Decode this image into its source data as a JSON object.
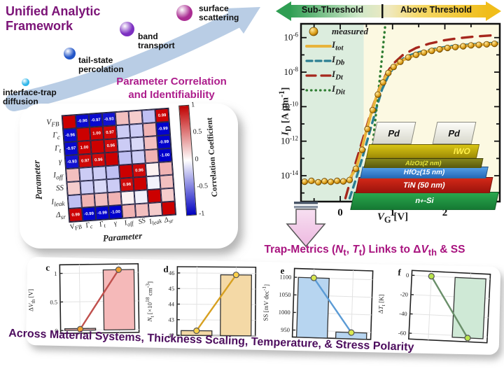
{
  "framework": {
    "title": "Unified Analytic Framework",
    "steps": [
      {
        "label": "interface-trap diffusion",
        "color": "#30b6e9"
      },
      {
        "label": "tail-state percolation",
        "color": "#2356c8"
      },
      {
        "label": "band transport",
        "color": "#7c2fc1"
      },
      {
        "label": "surface scattering",
        "color": "#aa2d92"
      }
    ]
  },
  "correlation_title": {
    "line1": "Parameter Correlation",
    "line2": "and Identifiability"
  },
  "trap_title": "Trap-Metrics (*N*_{t}, *T*_{t}) Links to Δ*V*_{th}  & SS",
  "bottom_text": "Across Material Systems, Thickness Scaling, Temperature, & Stress Polarity",
  "device": {
    "layers": {
      "pd1": "Pd",
      "pd2": "Pd",
      "iwo": "IWO",
      "alo": "Al_{2}O_{3} (2 nm)",
      "hfo": "HfO_{2} (15 nm)",
      "tin": "TiN (50 nm)",
      "si": "n^{+}-Si"
    }
  },
  "chart_data": [
    {
      "id": "correlation_heatmap",
      "type": "heatmap",
      "title": "Parameter Correlation and Identifiability",
      "xlabel": "Parameter",
      "ylabel": "Parameter",
      "params": [
        "*V*_{FB}",
        "*Γ*_{c}",
        "*Γ*_{t}",
        "*γ*",
        "*I*_{off}",
        "SS",
        "*I*_{leak}",
        "Δ_{sr}"
      ],
      "colorbar": {
        "label": "Correlation Coefficient",
        "ticks": [
          "1",
          "0.5",
          "0",
          "-0.5",
          "-1"
        ],
        "range": [
          -1,
          1
        ]
      },
      "matrix": [
        [
          1.0,
          -0.96,
          -0.97,
          -0.93,
          0.25,
          0.2,
          -0.25,
          0.99
        ],
        [
          -0.96,
          1.0,
          1.0,
          0.97,
          -0.2,
          -0.2,
          0.3,
          -0.99
        ],
        [
          -0.97,
          1.0,
          1.0,
          0.96,
          -0.2,
          -0.15,
          0.25,
          -0.99
        ],
        [
          -0.93,
          0.97,
          0.96,
          1.0,
          -0.25,
          -0.2,
          0.3,
          -1.0
        ],
        [
          0.25,
          -0.2,
          -0.2,
          -0.25,
          1.0,
          0.96,
          0.05,
          0.3
        ],
        [
          0.2,
          -0.2,
          -0.15,
          -0.2,
          0.96,
          1.0,
          -0.05,
          0.25
        ],
        [
          -0.25,
          0.3,
          0.25,
          0.3,
          0.05,
          -0.05,
          1.0,
          0.2
        ],
        [
          0.99,
          -0.99,
          -0.99,
          -1.0,
          0.3,
          0.25,
          0.2,
          1.0
        ]
      ]
    },
    {
      "id": "transfer_characteristics",
      "type": "line",
      "log_y": true,
      "banner": {
        "left_label": "Sub-Threshold",
        "right_label": "Above Threshold"
      },
      "xlabel": "*V*_{G} [V]",
      "ylabel": "*I*_{D} [A μm^{-1}]",
      "xlim": [
        -0.75,
        3.05
      ],
      "ylog10_lim": [
        -15.5,
        -5.2
      ],
      "xticks": [
        0,
        1,
        2
      ],
      "xticks_minor": [
        -0.5,
        0.5,
        1.5,
        2.5
      ],
      "yticks_log10": [
        -6,
        -8,
        -10,
        -12,
        -14
      ],
      "yticks_minor_log10": [
        -7,
        -9,
        -11,
        -13,
        -15
      ],
      "region_boundary_v": 0.45,
      "region_colors": {
        "subthreshold": "#dcedde",
        "above_threshold": "#fcf9e2"
      },
      "legend": [
        {
          "label": "measured",
          "marker": "sphere",
          "color": "#c8860a"
        },
        {
          "label": "*I*_{tot}",
          "marker": "solid",
          "color": "#e8b43c"
        },
        {
          "label": "*I*_{Db}",
          "marker": "dash",
          "color": "#2b7e92"
        },
        {
          "label": "*I*_{Dt}",
          "marker": "longdash",
          "color": "#a6271d"
        },
        {
          "label": "*I*_{Dit}",
          "marker": "dot",
          "color": "#2f7d32"
        }
      ],
      "series": [
        {
          "name": "I_Dt",
          "style": "longdash",
          "color": "#a6271d",
          "points": [
            [
              0.1,
              -15.3
            ],
            [
              0.22,
              -14.0
            ],
            [
              0.35,
              -12.7
            ],
            [
              0.5,
              -11.2
            ],
            [
              0.62,
              -10.0
            ],
            [
              0.75,
              -8.9
            ],
            [
              0.88,
              -8.1
            ],
            [
              1.0,
              -7.55
            ],
            [
              1.2,
              -7.0
            ],
            [
              1.45,
              -6.6
            ],
            [
              1.7,
              -6.35
            ],
            [
              2.0,
              -6.15
            ],
            [
              2.3,
              -6.02
            ],
            [
              2.6,
              -5.93
            ],
            [
              2.9,
              -5.87
            ]
          ]
        },
        {
          "name": "I_Db",
          "style": "dash",
          "color": "#2b7e92",
          "points": [
            [
              0.18,
              -15.3
            ],
            [
              0.3,
              -14.2
            ],
            [
              0.42,
              -13.0
            ],
            [
              0.55,
              -11.6
            ],
            [
              0.68,
              -10.2
            ],
            [
              0.8,
              -9.0
            ],
            [
              0.92,
              -8.2
            ],
            [
              1.05,
              -7.6
            ],
            [
              1.25,
              -7.1
            ],
            [
              1.5,
              -6.85
            ],
            [
              1.8,
              -6.65
            ],
            [
              2.1,
              -6.5
            ],
            [
              2.4,
              -6.42
            ],
            [
              2.7,
              -6.35
            ],
            [
              3.0,
              -6.3
            ]
          ]
        },
        {
          "name": "I_Dit",
          "style": "dot",
          "color": "#2f7d32",
          "points": [
            [
              0.5,
              -15.3
            ],
            [
              0.56,
              -13.8
            ],
            [
              0.62,
              -12.2
            ],
            [
              0.68,
              -10.5
            ],
            [
              0.74,
              -8.8
            ],
            [
              0.8,
              -7.1
            ],
            [
              0.86,
              -5.3
            ]
          ]
        },
        {
          "name": "I_tot",
          "style": "solid",
          "color": "#e8b43c",
          "points": [
            [
              -0.7,
              -14.35
            ],
            [
              -0.45,
              -14.35
            ],
            [
              -0.2,
              -14.35
            ],
            [
              0.0,
              -14.35
            ],
            [
              0.15,
              -14.3
            ],
            [
              0.3,
              -13.6
            ],
            [
              0.4,
              -12.6
            ],
            [
              0.5,
              -11.4
            ],
            [
              0.6,
              -10.3
            ],
            [
              0.7,
              -9.35
            ],
            [
              0.8,
              -8.6
            ],
            [
              0.9,
              -8.1
            ],
            [
              1.0,
              -7.75
            ],
            [
              1.2,
              -7.3
            ],
            [
              1.4,
              -7.05
            ],
            [
              1.6,
              -6.85
            ],
            [
              1.8,
              -6.72
            ],
            [
              2.0,
              -6.62
            ],
            [
              2.2,
              -6.54
            ],
            [
              2.4,
              -6.48
            ],
            [
              2.6,
              -6.43
            ],
            [
              2.8,
              -6.39
            ],
            [
              3.0,
              -6.36
            ]
          ]
        }
      ],
      "measured_points": [
        [
          -0.68,
          -14.35
        ],
        [
          -0.55,
          -14.3
        ],
        [
          -0.42,
          -14.38
        ],
        [
          -0.3,
          -14.32
        ],
        [
          -0.18,
          -14.36
        ],
        [
          -0.06,
          -14.3
        ],
        [
          0.06,
          -14.33
        ],
        [
          0.18,
          -14.25
        ],
        [
          0.3,
          -13.6
        ],
        [
          0.42,
          -12.5
        ],
        [
          0.52,
          -11.3
        ],
        [
          0.62,
          -10.2
        ],
        [
          0.72,
          -9.3
        ],
        [
          0.82,
          -8.6
        ],
        [
          0.92,
          -8.05
        ],
        [
          1.02,
          -7.7
        ],
        [
          1.15,
          -7.4
        ],
        [
          1.3,
          -7.15
        ],
        [
          1.45,
          -7.0
        ],
        [
          1.6,
          -6.87
        ],
        [
          1.75,
          -6.77
        ],
        [
          1.9,
          -6.68
        ],
        [
          2.05,
          -6.6
        ],
        [
          2.2,
          -6.55
        ],
        [
          2.35,
          -6.5
        ],
        [
          2.5,
          -6.45
        ],
        [
          2.65,
          -6.42
        ],
        [
          2.8,
          -6.39
        ],
        [
          2.95,
          -6.36
        ]
      ]
    },
    {
      "id": "panel_c",
      "type": "bar+line",
      "letter": "c",
      "ylabel": "Δ*V*_{th} [V]",
      "yticks": [
        0,
        0.5,
        1
      ],
      "ylim": [
        -0.05,
        1.15
      ],
      "baseline": 0,
      "bar_values": [
        0.03,
        1.05
      ],
      "line_values": [
        0.02,
        1.05
      ],
      "bar_color": "#f5b9b9",
      "line_color": "#c0504d",
      "marker_color": "#f0a030"
    },
    {
      "id": "panel_d",
      "type": "bar+line",
      "letter": "d",
      "ylabel": "*N*_{t} [×10^{18} cm^{-3}]",
      "yticks": [
        42,
        43,
        44,
        45,
        46
      ],
      "ylim": [
        42,
        46.4
      ],
      "baseline": 42,
      "bar_values": [
        42.3,
        45.9
      ],
      "line_values": [
        42.3,
        45.9
      ],
      "bar_color": "#f4d9a6",
      "line_color": "#d7a021",
      "marker_color": "#ffd24a"
    },
    {
      "id": "panel_e",
      "type": "bar+line",
      "letter": "e",
      "ylabel": "SS [mV dec^{-1}]",
      "yticks": [
        950,
        1000,
        1050,
        1100
      ],
      "ylim": [
        930,
        1125
      ],
      "baseline": 930,
      "bar_values": [
        1100,
        948
      ],
      "line_values": [
        1100,
        948
      ],
      "bar_color": "#b7d5f0",
      "line_color": "#5b9bd5",
      "marker_color": "#d9e84f"
    },
    {
      "id": "panel_f",
      "type": "bar+line",
      "letter": "f",
      "ylabel": "Δ*T*_{t} [K]",
      "yticks": [
        0,
        -20,
        -40,
        -60
      ],
      "ylim": [
        -66,
        5
      ],
      "baseline": 0,
      "bar_values": [
        null,
        -62
      ],
      "line_values": [
        0,
        -62
      ],
      "bar_color": "#cfe9d6",
      "line_color": "#6a8f6a",
      "marker_color": "#b7e34a"
    }
  ]
}
